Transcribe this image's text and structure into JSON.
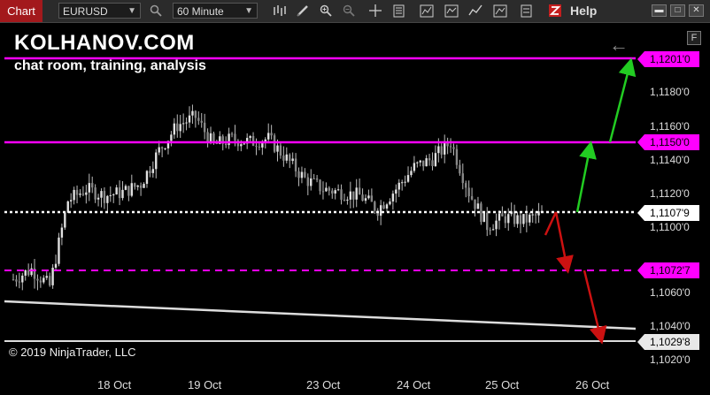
{
  "toolbar": {
    "chart_tab": "Chart",
    "instrument": "EURUSD",
    "interval": "60 Minute",
    "help": "Help"
  },
  "watermark": {
    "title": "KOLHANOV.COM",
    "subtitle": "chat room, training, analysis"
  },
  "copyright": "© 2019 NinjaTrader, LLC",
  "panel_button": "F",
  "price_axis": [
    "1,1180'0",
    "1,1160'0",
    "1,1140'0",
    "1,1120'0",
    "1,1100'0",
    "1,1060'0",
    "1,1040'0",
    "1,1020'0"
  ],
  "time_axis": [
    "18 Oct",
    "19 Oct",
    "23 Oct",
    "24 Oct",
    "25 Oct",
    "26 Oct"
  ],
  "price_tags": {
    "upper_target": "1,1201'0",
    "resistance": "1,1150'0",
    "current": "1,1107'9",
    "support": "1,1072'7",
    "trend_low": "1,1029'8"
  },
  "colors": {
    "level_line": "#ff00ff",
    "current_line": "#ffffff",
    "up_arrow": "#22cc22",
    "down_arrow": "#cc1111",
    "trendline": "#dddddd",
    "chart_tab": "#a3191c"
  },
  "chart_data": {
    "type": "candlestick",
    "instrument": "EURUSD",
    "interval": "60 Minute",
    "close_path": [
      {
        "x": "17 Oct",
        "y": 1.1068
      },
      {
        "x": "17 Oct",
        "y": 1.1074
      },
      {
        "x": "17 Oct",
        "y": 1.1064
      },
      {
        "x": "18 Oct",
        "y": 1.1115
      },
      {
        "x": "18 Oct",
        "y": 1.1122
      },
      {
        "x": "18 Oct",
        "y": 1.1118
      },
      {
        "x": "18 Oct",
        "y": 1.112
      },
      {
        "x": "18 Oct",
        "y": 1.1125
      },
      {
        "x": "19 Oct",
        "y": 1.1145
      },
      {
        "x": "19 Oct",
        "y": 1.116
      },
      {
        "x": "19 Oct",
        "y": 1.1165
      },
      {
        "x": "19 Oct",
        "y": 1.1148
      },
      {
        "x": "19 Oct",
        "y": 1.1152
      },
      {
        "x": "19 Oct",
        "y": 1.115
      },
      {
        "x": "22 Oct",
        "y": 1.1152
      },
      {
        "x": "22 Oct",
        "y": 1.114
      },
      {
        "x": "22 Oct",
        "y": 1.1128
      },
      {
        "x": "23 Oct",
        "y": 1.1122
      },
      {
        "x": "23 Oct",
        "y": 1.112
      },
      {
        "x": "23 Oct",
        "y": 1.1118
      },
      {
        "x": "24 Oct",
        "y": 1.111
      },
      {
        "x": "24 Oct",
        "y": 1.1122
      },
      {
        "x": "24 Oct",
        "y": 1.1135
      },
      {
        "x": "24 Oct",
        "y": 1.114
      },
      {
        "x": "24 Oct",
        "y": 1.115
      },
      {
        "x": "25 Oct",
        "y": 1.112
      },
      {
        "x": "25 Oct",
        "y": 1.11
      },
      {
        "x": "25 Oct",
        "y": 1.1105
      },
      {
        "x": "25 Oct",
        "y": 1.1103
      },
      {
        "x": "25 Oct",
        "y": 1.1107
      }
    ],
    "levels": [
      {
        "label": "1,1201'0",
        "value": 1.1201,
        "style": "solid",
        "color": "#ff00ff"
      },
      {
        "label": "1,1150'0",
        "value": 1.115,
        "style": "solid",
        "color": "#ff00ff"
      },
      {
        "label": "1,1107'9",
        "value": 1.11079,
        "style": "dotted",
        "color": "#ffffff"
      },
      {
        "label": "1,1072'7",
        "value": 1.10727,
        "style": "dashed",
        "color": "#ff00ff"
      }
    ],
    "trendline": {
      "label": "1,1029'8",
      "from": 1.106,
      "to": 1.1036
    },
    "grid": false,
    "y_axis_ticks": [
      1.118,
      1.116,
      1.114,
      1.112,
      1.11,
      1.106,
      1.104,
      1.102
    ]
  }
}
